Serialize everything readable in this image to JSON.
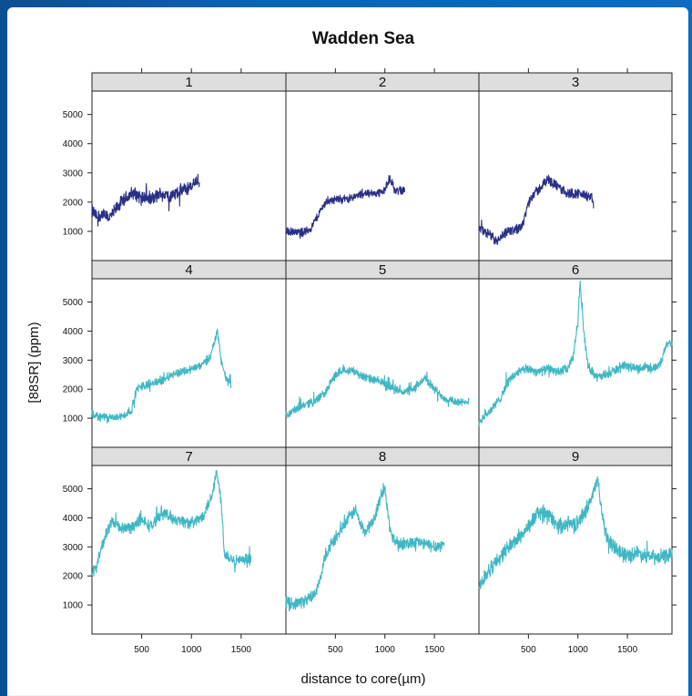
{
  "chart_data": {
    "type": "line",
    "title": "Wadden Sea",
    "ylabel": "[88SR] (ppm)",
    "xlabel": "distance to core(µm)",
    "xlim": [
      0,
      1950
    ],
    "ylim": [
      0,
      5800
    ],
    "x_ticks": [
      500,
      1000,
      1500
    ],
    "x_tick_labels": [
      "500",
      "1000",
      "1500"
    ],
    "y_ticks": [
      1000,
      2000,
      3000,
      4000,
      5000
    ],
    "y_tick_labels": [
      "1000",
      "2000",
      "3000",
      "4000",
      "5000"
    ],
    "layout": "3x3 grid",
    "colors": {
      "dark": "#2a2f86",
      "light": "#3fb7c3"
    },
    "panels": [
      {
        "label": "1",
        "color": "dark",
        "noise": 200,
        "points": [
          [
            0,
            1700
          ],
          [
            50,
            1500
          ],
          [
            100,
            1600
          ],
          [
            150,
            1450
          ],
          [
            200,
            1550
          ],
          [
            250,
            1800
          ],
          [
            300,
            2000
          ],
          [
            400,
            2300
          ],
          [
            500,
            2200
          ],
          [
            600,
            2100
          ],
          [
            700,
            2300
          ],
          [
            800,
            2200
          ],
          [
            900,
            2400
          ],
          [
            1000,
            2500
          ],
          [
            1050,
            2800
          ],
          [
            1080,
            2600
          ]
        ]
      },
      {
        "label": "2",
        "color": "dark",
        "noise": 120,
        "points": [
          [
            0,
            1000
          ],
          [
            100,
            950
          ],
          [
            200,
            1000
          ],
          [
            250,
            1100
          ],
          [
            300,
            1400
          ],
          [
            350,
            1700
          ],
          [
            400,
            2000
          ],
          [
            500,
            2100
          ],
          [
            600,
            2100
          ],
          [
            700,
            2200
          ],
          [
            800,
            2300
          ],
          [
            900,
            2300
          ],
          [
            1000,
            2400
          ],
          [
            1050,
            2850
          ],
          [
            1100,
            2400
          ],
          [
            1200,
            2400
          ]
        ]
      },
      {
        "label": "3",
        "color": "dark",
        "noise": 150,
        "points": [
          [
            0,
            1100
          ],
          [
            100,
            900
          ],
          [
            150,
            650
          ],
          [
            200,
            700
          ],
          [
            300,
            1000
          ],
          [
            400,
            1100
          ],
          [
            450,
            1300
          ],
          [
            500,
            2000
          ],
          [
            550,
            2300
          ],
          [
            600,
            2400
          ],
          [
            650,
            2600
          ],
          [
            700,
            2800
          ],
          [
            800,
            2500
          ],
          [
            900,
            2300
          ],
          [
            1000,
            2300
          ],
          [
            1100,
            2200
          ],
          [
            1150,
            2100
          ],
          [
            1160,
            1800
          ]
        ]
      },
      {
        "label": "4",
        "color": "light",
        "noise": 130,
        "points": [
          [
            0,
            1100
          ],
          [
            100,
            1050
          ],
          [
            200,
            1000
          ],
          [
            300,
            1050
          ],
          [
            400,
            1300
          ],
          [
            450,
            2000
          ],
          [
            500,
            2100
          ],
          [
            600,
            2200
          ],
          [
            700,
            2300
          ],
          [
            800,
            2500
          ],
          [
            900,
            2600
          ],
          [
            1000,
            2700
          ],
          [
            1100,
            2800
          ],
          [
            1200,
            3200
          ],
          [
            1260,
            4000
          ],
          [
            1300,
            3000
          ],
          [
            1350,
            2300
          ],
          [
            1400,
            2200
          ]
        ]
      },
      {
        "label": "5",
        "color": "light",
        "noise": 130,
        "points": [
          [
            0,
            1100
          ],
          [
            100,
            1300
          ],
          [
            200,
            1500
          ],
          [
            300,
            1600
          ],
          [
            400,
            1900
          ],
          [
            500,
            2500
          ],
          [
            600,
            2700
          ],
          [
            700,
            2600
          ],
          [
            800,
            2400
          ],
          [
            900,
            2300
          ],
          [
            1000,
            2200
          ],
          [
            1100,
            2000
          ],
          [
            1200,
            1900
          ],
          [
            1300,
            2000
          ],
          [
            1400,
            2400
          ],
          [
            1500,
            2000
          ],
          [
            1600,
            1700
          ],
          [
            1700,
            1600
          ],
          [
            1800,
            1500
          ],
          [
            1850,
            1600
          ]
        ]
      },
      {
        "label": "6",
        "color": "light",
        "noise": 140,
        "points": [
          [
            0,
            900
          ],
          [
            100,
            1200
          ],
          [
            200,
            1600
          ],
          [
            300,
            2300
          ],
          [
            400,
            2600
          ],
          [
            500,
            2700
          ],
          [
            600,
            2600
          ],
          [
            700,
            2700
          ],
          [
            800,
            2600
          ],
          [
            900,
            2700
          ],
          [
            950,
            3100
          ],
          [
            1000,
            4300
          ],
          [
            1020,
            5700
          ],
          [
            1060,
            4000
          ],
          [
            1100,
            2800
          ],
          [
            1200,
            2400
          ],
          [
            1300,
            2500
          ],
          [
            1400,
            2700
          ],
          [
            1500,
            2800
          ],
          [
            1600,
            2700
          ],
          [
            1700,
            2800
          ],
          [
            1800,
            2700
          ],
          [
            1850,
            3000
          ],
          [
            1900,
            3600
          ],
          [
            1950,
            3600
          ]
        ]
      },
      {
        "label": "7",
        "color": "light",
        "noise": 180,
        "points": [
          [
            0,
            2000
          ],
          [
            50,
            2400
          ],
          [
            100,
            3000
          ],
          [
            150,
            3500
          ],
          [
            200,
            3900
          ],
          [
            300,
            3600
          ],
          [
            400,
            3700
          ],
          [
            500,
            3900
          ],
          [
            600,
            3700
          ],
          [
            700,
            4200
          ],
          [
            800,
            4000
          ],
          [
            900,
            3900
          ],
          [
            1000,
            3800
          ],
          [
            1100,
            4000
          ],
          [
            1200,
            4700
          ],
          [
            1250,
            5600
          ],
          [
            1300,
            4600
          ],
          [
            1330,
            2800
          ],
          [
            1400,
            2600
          ],
          [
            1500,
            2500
          ],
          [
            1600,
            2600
          ]
        ]
      },
      {
        "label": "8",
        "color": "light",
        "noise": 180,
        "points": [
          [
            0,
            1100
          ],
          [
            100,
            1050
          ],
          [
            200,
            1150
          ],
          [
            300,
            1400
          ],
          [
            350,
            1900
          ],
          [
            400,
            2700
          ],
          [
            500,
            3300
          ],
          [
            600,
            3800
          ],
          [
            700,
            4300
          ],
          [
            750,
            3800
          ],
          [
            800,
            3500
          ],
          [
            900,
            4000
          ],
          [
            950,
            4700
          ],
          [
            1000,
            5000
          ],
          [
            1050,
            3600
          ],
          [
            1100,
            3200
          ],
          [
            1200,
            3100
          ],
          [
            1300,
            3200
          ],
          [
            1400,
            3100
          ],
          [
            1500,
            3000
          ],
          [
            1600,
            3100
          ]
        ]
      },
      {
        "label": "9",
        "color": "light",
        "noise": 220,
        "points": [
          [
            0,
            1600
          ],
          [
            100,
            2200
          ],
          [
            200,
            2600
          ],
          [
            300,
            3000
          ],
          [
            400,
            3300
          ],
          [
            500,
            3700
          ],
          [
            600,
            4200
          ],
          [
            700,
            4100
          ],
          [
            800,
            3700
          ],
          [
            900,
            3800
          ],
          [
            1000,
            3800
          ],
          [
            1100,
            4400
          ],
          [
            1150,
            4800
          ],
          [
            1200,
            5300
          ],
          [
            1250,
            4000
          ],
          [
            1300,
            3200
          ],
          [
            1400,
            2900
          ],
          [
            1500,
            2700
          ],
          [
            1600,
            2800
          ],
          [
            1700,
            2700
          ],
          [
            1800,
            2600
          ],
          [
            1900,
            2700
          ],
          [
            1950,
            2800
          ]
        ]
      }
    ]
  }
}
